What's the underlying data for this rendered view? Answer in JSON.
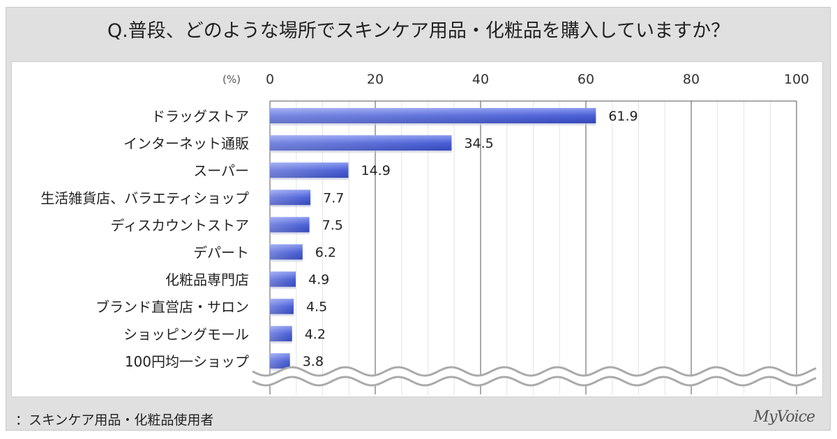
{
  "chart_data": {
    "type": "bar",
    "orientation": "horizontal",
    "title": "Q.普段、どのような場所でスキンケア用品・化粧品を購入していますか？",
    "unit_label": "(%)",
    "xlim": [
      0,
      100
    ],
    "ticks": [
      0,
      20,
      40,
      60,
      80,
      100
    ],
    "grid": true,
    "categories": [
      "ドラッグストア",
      "インターネット通販",
      "スーパー",
      "生活雑貨店、バラエティショップ",
      "ディスカウントストア",
      "デパート",
      "化粧品専門店",
      "ブランド直営店・サロン",
      "ショッピングモール",
      "100円均一ショップ"
    ],
    "values": [
      61.9,
      34.5,
      14.9,
      7.7,
      7.5,
      6.2,
      4.9,
      4.5,
      4.2,
      3.8
    ],
    "value_labels": [
      "61.9",
      "34.5",
      "14.9",
      "7.7",
      "7.5",
      "6.2",
      "4.9",
      "4.5",
      "4.2",
      "3.8"
    ],
    "bar_color": "#4a5fd6"
  },
  "footnote": "：スキンケア用品・化粧品使用者",
  "logo": "MyVoice"
}
